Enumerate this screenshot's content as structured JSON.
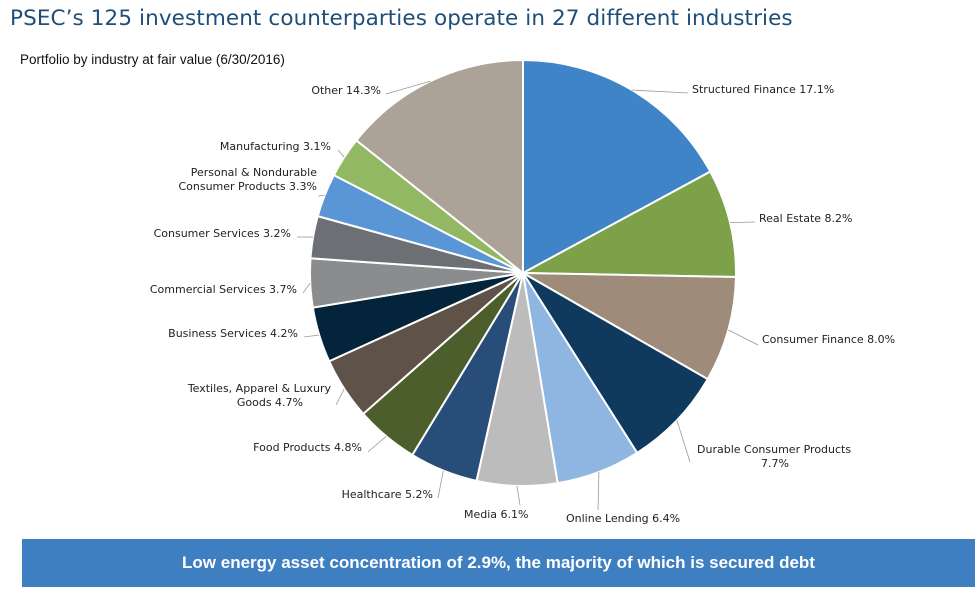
{
  "header": {
    "title": "PSEC’s 125 investment counterparties operate in 27 different industries",
    "subtitle": "Portfolio by industry at fair value (6/30/2016)"
  },
  "chart_data": {
    "type": "pie",
    "title": "PSEC’s 125 investment counterparties operate in 27 different industries",
    "subtitle": "Portfolio by industry at fair value (6/30/2016)",
    "unit": "%",
    "start": "12 o'clock",
    "direction": "clockwise",
    "slices": [
      {
        "name": "Structured Finance",
        "value": 17.1,
        "label": "Structured Finance 17.1%",
        "color": "#3f84c6"
      },
      {
        "name": "Real Estate",
        "value": 8.2,
        "label": "Real Estate  8.2%",
        "color": "#7ca149"
      },
      {
        "name": "Consumer Finance",
        "value": 8.0,
        "label": "Consumer Finance  8.0%",
        "color": "#9e8b7a"
      },
      {
        "name": "Durable Consumer Products",
        "value": 7.7,
        "label": "Durable Consumer Products\n7.7%",
        "color": "#0f3a5e"
      },
      {
        "name": "Online Lending",
        "value": 6.4,
        "label": "Online Lending 6.4%",
        "color": "#8fb6e0"
      },
      {
        "name": "Media",
        "value": 6.1,
        "label": "Media  6.1%",
        "color": "#bcbcbc"
      },
      {
        "name": "Healthcare",
        "value": 5.2,
        "label": "Healthcare  5.2%",
        "color": "#274d78"
      },
      {
        "name": "Food Products",
        "value": 4.8,
        "label": "Food Products  4.8%",
        "color": "#4b5e2b"
      },
      {
        "name": "Textiles, Apparel & Luxury Goods",
        "value": 4.7,
        "label": "Textiles, Apparel & Luxury\nGoods  4.7%",
        "color": "#5f5248"
      },
      {
        "name": "Business Services",
        "value": 4.2,
        "label": "Business Services  4.2%",
        "color": "#04243b"
      },
      {
        "name": "Commercial Services",
        "value": 3.7,
        "label": "Commercial Services  3.7%",
        "color": "#8b8c8e"
      },
      {
        "name": "Consumer Services",
        "value": 3.2,
        "label": "Consumer Services  3.2%",
        "color": "#6c6f73"
      },
      {
        "name": "Personal & Nondurable Consumer Products",
        "value": 3.3,
        "label": "Personal & Nondurable\nConsumer Products  3.3%",
        "color": "#5a96d6"
      },
      {
        "name": "Manufacturing",
        "value": 3.1,
        "label": "Manufacturing  3.1%",
        "color": "#92b864"
      },
      {
        "name": "Other",
        "value": 14.3,
        "label": "Other  14.3%",
        "color": "#ada297"
      }
    ]
  },
  "footer": {
    "banner": "Low energy asset concentration of 2.9%, the majority of which is secured debt"
  }
}
